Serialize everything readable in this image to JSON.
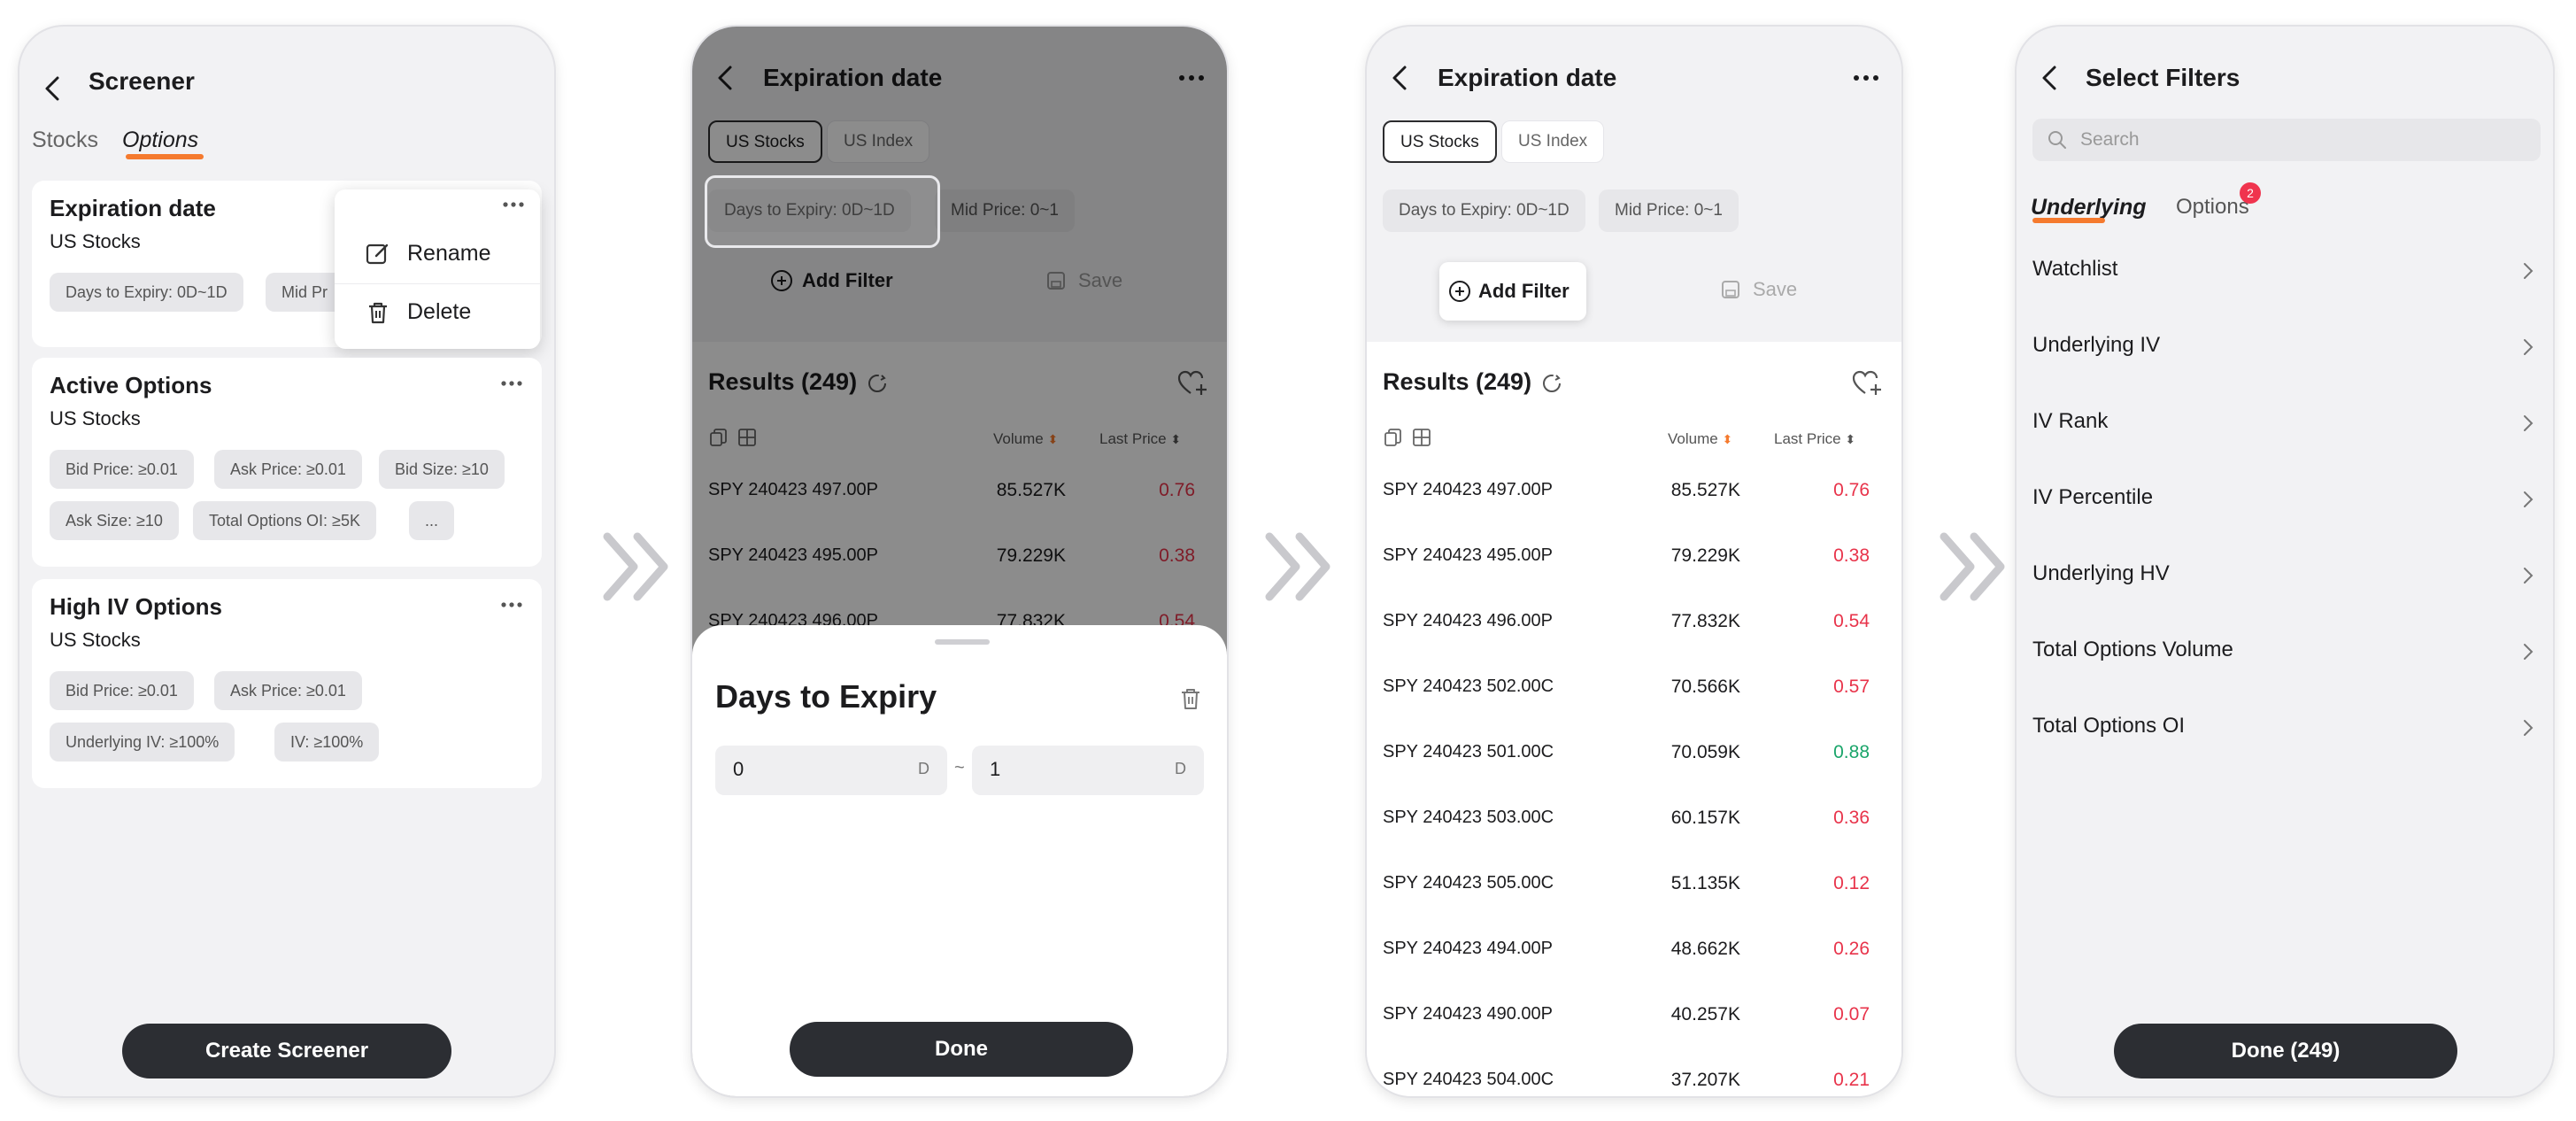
{
  "colors": {
    "accent": "#f57a2e",
    "dark_button": "#2c2e33",
    "negative": "#e8334a",
    "positive": "#1aa56a",
    "badge": "#f0344e"
  },
  "screen1": {
    "title": "Screener",
    "tabs": [
      "Stocks",
      "Options"
    ],
    "active_tab": "Options",
    "cards": [
      {
        "title": "Expiration date",
        "subtitle": "US Stocks",
        "chips": [
          "Days to Expiry: 0D~1D",
          "Mid Pr"
        ]
      },
      {
        "title": "Active Options",
        "subtitle": "US Stocks",
        "chips": [
          "Bid Price: ≥0.01",
          "Ask Price: ≥0.01",
          "Bid Size: ≥10",
          "Ask Size: ≥10",
          "Total Options OI: ≥5K",
          "..."
        ]
      },
      {
        "title": "High IV Options",
        "subtitle": "US Stocks",
        "chips": [
          "Bid Price: ≥0.01",
          "Ask Price: ≥0.01",
          "Underlying IV: ≥100%",
          "IV: ≥100%"
        ]
      }
    ],
    "menu": {
      "rename": "Rename",
      "delete": "Delete"
    },
    "create_button": "Create Screener"
  },
  "screen2": {
    "title": "Expiration date",
    "markets": [
      "US Stocks",
      "US Index"
    ],
    "chips": [
      "Days to Expiry: 0D~1D",
      "Mid Price: 0~1"
    ],
    "add_filter": "Add Filter",
    "save": "Save",
    "results_title": "Results (249)",
    "col_volume": "Volume",
    "col_last_price": "Last Price",
    "rows": [
      {
        "symbol": "SPY 240423 497.00P",
        "volume": "85.527K",
        "price": "0.76"
      },
      {
        "symbol": "SPY 240423 495.00P",
        "volume": "79.229K",
        "price": "0.38"
      },
      {
        "symbol": "SPY 240423 496.00P",
        "volume": "77.832K",
        "price": "0.54"
      }
    ],
    "sheet": {
      "title": "Days to Expiry",
      "from": "0",
      "to": "1",
      "unit": "D",
      "separator": "~",
      "done": "Done"
    }
  },
  "screen3": {
    "title": "Expiration date",
    "markets": [
      "US Stocks",
      "US Index"
    ],
    "chips": [
      "Days to Expiry: 0D~1D",
      "Mid Price: 0~1"
    ],
    "add_filter": "Add Filter",
    "save": "Save",
    "results_title": "Results (249)",
    "col_volume": "Volume",
    "col_last_price": "Last Price",
    "rows": [
      {
        "symbol": "SPY 240423 497.00P",
        "volume": "85.527K",
        "price": "0.76",
        "dir": "down"
      },
      {
        "symbol": "SPY 240423 495.00P",
        "volume": "79.229K",
        "price": "0.38",
        "dir": "down"
      },
      {
        "symbol": "SPY 240423 496.00P",
        "volume": "77.832K",
        "price": "0.54",
        "dir": "down"
      },
      {
        "symbol": "SPY 240423 502.00C",
        "volume": "70.566K",
        "price": "0.57",
        "dir": "down"
      },
      {
        "symbol": "SPY 240423 501.00C",
        "volume": "70.059K",
        "price": "0.88",
        "dir": "up"
      },
      {
        "symbol": "SPY 240423 503.00C",
        "volume": "60.157K",
        "price": "0.36",
        "dir": "down"
      },
      {
        "symbol": "SPY 240423 505.00C",
        "volume": "51.135K",
        "price": "0.12",
        "dir": "down"
      },
      {
        "symbol": "SPY 240423 494.00P",
        "volume": "48.662K",
        "price": "0.26",
        "dir": "down"
      },
      {
        "symbol": "SPY 240423 490.00P",
        "volume": "40.257K",
        "price": "0.07",
        "dir": "down"
      },
      {
        "symbol": "SPY 240423 504.00C",
        "volume": "37.207K",
        "price": "0.21",
        "dir": "down"
      }
    ]
  },
  "screen4": {
    "title": "Select Filters",
    "search_placeholder": "Search",
    "tabs": [
      "Underlying",
      "Options"
    ],
    "active_tab": "Underlying",
    "options_badge": "2",
    "items": [
      "Watchlist",
      "Underlying IV",
      "IV Rank",
      "IV Percentile",
      "Underlying HV",
      "Total Options Volume",
      "Total Options OI"
    ],
    "done_button": "Done (249)"
  }
}
